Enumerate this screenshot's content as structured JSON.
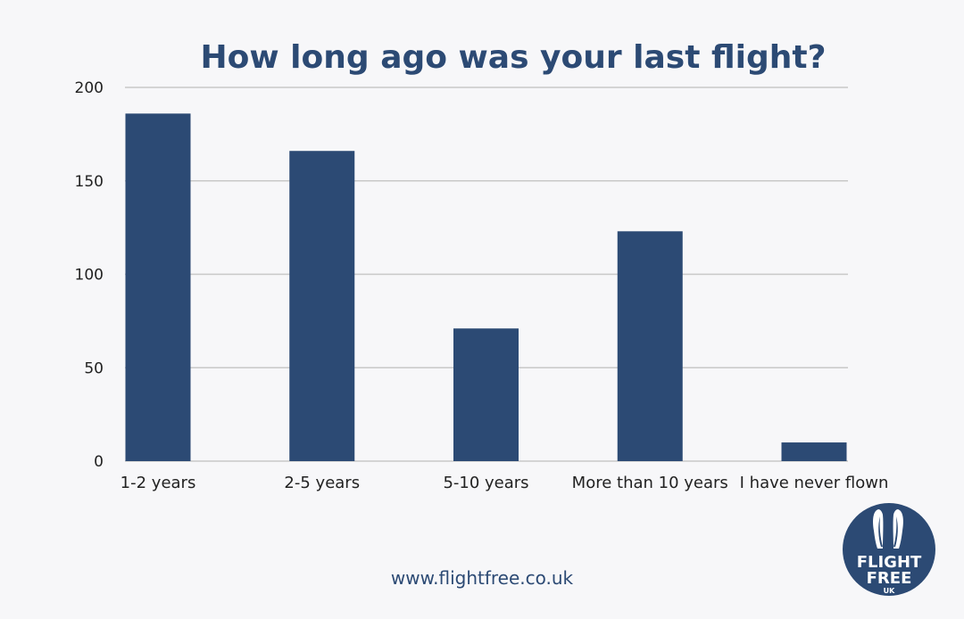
{
  "colors": {
    "bar": "#2c4a74",
    "grid": "#c8c8c8",
    "title": "#2c4a74",
    "text": "#222222"
  },
  "footer": {
    "url": "www.flightfree.co.uk"
  },
  "logo": {
    "line1": "FLIGHT",
    "line2": "FREE",
    "line3": "UK",
    "icon": "penguin-icon"
  },
  "chart_data": {
    "type": "bar",
    "title": "How long ago was your last flight?",
    "xlabel": "",
    "ylabel": "",
    "categories": [
      "1-2 years",
      "2-5 years",
      "5-10 years",
      "More than 10 years",
      "I have never flown"
    ],
    "values": [
      186,
      166,
      71,
      123,
      10
    ],
    "ylim": [
      0,
      200
    ],
    "yticks": [
      0,
      50,
      100,
      150,
      200
    ],
    "grid": true,
    "legend": "none"
  }
}
